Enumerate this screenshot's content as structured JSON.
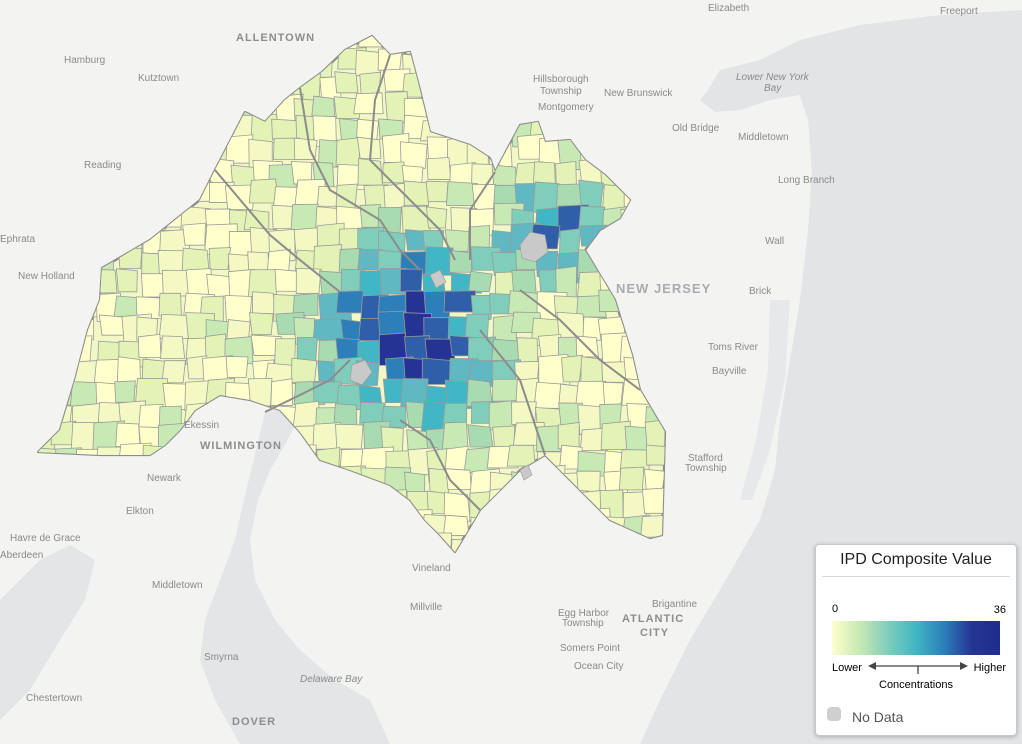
{
  "map": {
    "state_label": "NEW JERSEY",
    "places": {
      "elizabeth": "Elizabeth",
      "freeport": "Freeport",
      "allentown": "ALLENTOWN",
      "hamburg": "Hamburg",
      "kutztown": "Kutztown",
      "hillsborough": "Hillsborough",
      "hillsborough_twp": "Township",
      "montgomery": "Montgomery",
      "new_brunswick": "New Brunswick",
      "lower_ny_bay_1": "Lower New York",
      "lower_ny_bay_2": "Bay",
      "old_bridge": "Old Bridge",
      "middletown_nj": "Middletown",
      "reading": "Reading",
      "long_branch": "Long Branch",
      "ephrata": "Ephrata",
      "wall": "Wall",
      "new_holland": "New Holland",
      "brick": "Brick",
      "toms_river": "Toms River",
      "bayville": "Bayville",
      "kessin": "Ekessin",
      "wilmington": "WILMINGTON",
      "stafford_1": "Stafford",
      "stafford_2": "Township",
      "newark_de": "Newark",
      "elkton": "Elkton",
      "havre_de_grace": "Havre de Grace",
      "aberdeen": "Aberdeen",
      "vineland": "Vineland",
      "middletown_de": "Middletown",
      "millville": "Millville",
      "brigantine": "Brigantine",
      "egg_harbor_1": "Egg Harbor",
      "egg_harbor_2": "Township",
      "atlantic_city_1": "ATLANTIC",
      "atlantic_city_2": "CITY",
      "somers_point": "Somers Point",
      "ocean_city": "Ocean City",
      "smyrna": "Smyrna",
      "delaware_bay": "Delaware Bay",
      "chestertown": "Chestertown",
      "dover": "DOVER"
    }
  },
  "legend": {
    "title": "IPD Composite Value",
    "min_value": "0",
    "max_value": "36",
    "lower_label": "Lower",
    "higher_label": "Higher",
    "concentrations_label": "Concentrations",
    "no_data_label": "No Data",
    "colors": [
      "#ffffcc",
      "#c7e9b4",
      "#7fcdbb",
      "#41b6c4",
      "#2c7fb8",
      "#253494"
    ],
    "no_data_color": "#cfcfcf"
  }
}
